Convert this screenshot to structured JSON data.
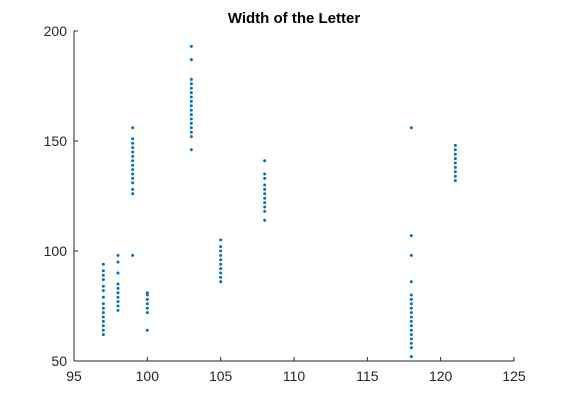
{
  "chart_data": {
    "type": "scatter",
    "title": "Width of the Letter",
    "xlabel": "",
    "ylabel": "",
    "xlim": [
      95,
      125
    ],
    "ylim": [
      50,
      200
    ],
    "xticks": [
      95,
      100,
      105,
      110,
      115,
      120,
      125
    ],
    "yticks": [
      50,
      100,
      150,
      200
    ],
    "grid": false,
    "marker_color": "#0072BD",
    "series": [
      {
        "points": [
          [
            97,
            62
          ],
          [
            97,
            64
          ],
          [
            97,
            66
          ],
          [
            97,
            68
          ],
          [
            97,
            70
          ],
          [
            97,
            72
          ],
          [
            97,
            74
          ],
          [
            97,
            76
          ],
          [
            97,
            79
          ],
          [
            97,
            82
          ],
          [
            97,
            84
          ],
          [
            97,
            87
          ],
          [
            97,
            89
          ],
          [
            97,
            91
          ],
          [
            97,
            94
          ],
          [
            98,
            73
          ],
          [
            98,
            75
          ],
          [
            98,
            77
          ],
          [
            98,
            79
          ],
          [
            98,
            81
          ],
          [
            98,
            83
          ],
          [
            98,
            85
          ],
          [
            98,
            90
          ],
          [
            98,
            95
          ],
          [
            98,
            98
          ],
          [
            99,
            98
          ],
          [
            99,
            126
          ],
          [
            99,
            128
          ],
          [
            99,
            131
          ],
          [
            99,
            133
          ],
          [
            99,
            135
          ],
          [
            99,
            137
          ],
          [
            99,
            139
          ],
          [
            99,
            141
          ],
          [
            99,
            143
          ],
          [
            99,
            145
          ],
          [
            99,
            147
          ],
          [
            99,
            149
          ],
          [
            99,
            151
          ],
          [
            99,
            156
          ],
          [
            100,
            64
          ],
          [
            100,
            72
          ],
          [
            100,
            74
          ],
          [
            100,
            76
          ],
          [
            100,
            78
          ],
          [
            100,
            80
          ],
          [
            100,
            81
          ],
          [
            103,
            146
          ],
          [
            103,
            152
          ],
          [
            103,
            154
          ],
          [
            103,
            156
          ],
          [
            103,
            158
          ],
          [
            103,
            160
          ],
          [
            103,
            162
          ],
          [
            103,
            164
          ],
          [
            103,
            166
          ],
          [
            103,
            168
          ],
          [
            103,
            170
          ],
          [
            103,
            172
          ],
          [
            103,
            174
          ],
          [
            103,
            176
          ],
          [
            103,
            178
          ],
          [
            103,
            187
          ],
          [
            103,
            193
          ],
          [
            105,
            86
          ],
          [
            105,
            88
          ],
          [
            105,
            90
          ],
          [
            105,
            92
          ],
          [
            105,
            94
          ],
          [
            105,
            96
          ],
          [
            105,
            98
          ],
          [
            105,
            100
          ],
          [
            105,
            102
          ],
          [
            105,
            105
          ],
          [
            108,
            114
          ],
          [
            108,
            118
          ],
          [
            108,
            120
          ],
          [
            108,
            122
          ],
          [
            108,
            124
          ],
          [
            108,
            126
          ],
          [
            108,
            128
          ],
          [
            108,
            130
          ],
          [
            108,
            133
          ],
          [
            108,
            135
          ],
          [
            108,
            141
          ],
          [
            118,
            52
          ],
          [
            118,
            56
          ],
          [
            118,
            58
          ],
          [
            118,
            60
          ],
          [
            118,
            62
          ],
          [
            118,
            64
          ],
          [
            118,
            66
          ],
          [
            118,
            68
          ],
          [
            118,
            70
          ],
          [
            118,
            72
          ],
          [
            118,
            74
          ],
          [
            118,
            76
          ],
          [
            118,
            78
          ],
          [
            118,
            80
          ],
          [
            118,
            86
          ],
          [
            118,
            98
          ],
          [
            118,
            107
          ],
          [
            118,
            156
          ],
          [
            121,
            132
          ],
          [
            121,
            134
          ],
          [
            121,
            136
          ],
          [
            121,
            138
          ],
          [
            121,
            140
          ],
          [
            121,
            142
          ],
          [
            121,
            144
          ],
          [
            121,
            146
          ],
          [
            121,
            148
          ]
        ]
      }
    ]
  }
}
